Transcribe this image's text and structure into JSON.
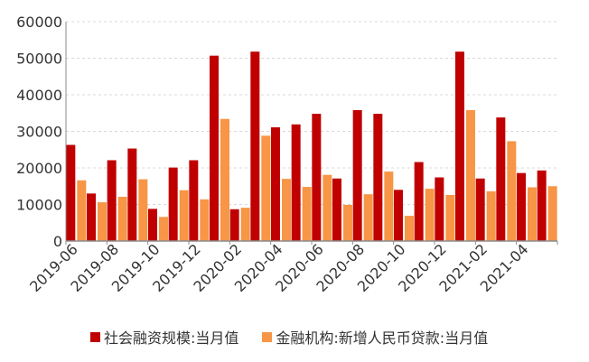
{
  "chart_data": {
    "type": "bar",
    "categories": [
      "2019-06",
      "2019-07",
      "2019-08",
      "2019-09",
      "2019-10",
      "2019-11",
      "2019-12",
      "2020-01",
      "2020-02",
      "2020-03",
      "2020-04",
      "2020-05",
      "2020-06",
      "2020-07",
      "2020-08",
      "2020-09",
      "2020-10",
      "2020-11",
      "2020-12",
      "2021-01",
      "2021-02",
      "2021-03",
      "2021-04",
      "2021-05"
    ],
    "x_tick_labels": [
      "2019-06",
      "2019-08",
      "2019-10",
      "2019-12",
      "2020-02",
      "2020-04",
      "2020-06",
      "2020-08",
      "2020-10",
      "2020-12",
      "2021-02",
      "2021-04"
    ],
    "y_ticks": [
      0,
      10000,
      20000,
      30000,
      40000,
      50000,
      60000
    ],
    "ylim": [
      0,
      60000
    ],
    "grid": "horizontal dashed",
    "legend_position": "bottom",
    "series": [
      {
        "name": "社会融资规模:当月值",
        "color": "#c00000",
        "values": [
          26300,
          13000,
          22100,
          25300,
          8800,
          20100,
          22100,
          50700,
          8700,
          51800,
          31100,
          31900,
          34800,
          17100,
          35800,
          34800,
          14000,
          21600,
          17400,
          51800,
          17100,
          33800,
          18600,
          19300
        ]
      },
      {
        "name": "金融机构:新增人民币贷款:当月值",
        "color": "#f79646",
        "values": [
          16600,
          10600,
          12100,
          16900,
          6600,
          13900,
          11400,
          33400,
          9100,
          28800,
          17000,
          14800,
          18100,
          9900,
          12800,
          19000,
          6900,
          14300,
          12600,
          35800,
          13600,
          27300,
          14700,
          15000
        ]
      }
    ]
  }
}
